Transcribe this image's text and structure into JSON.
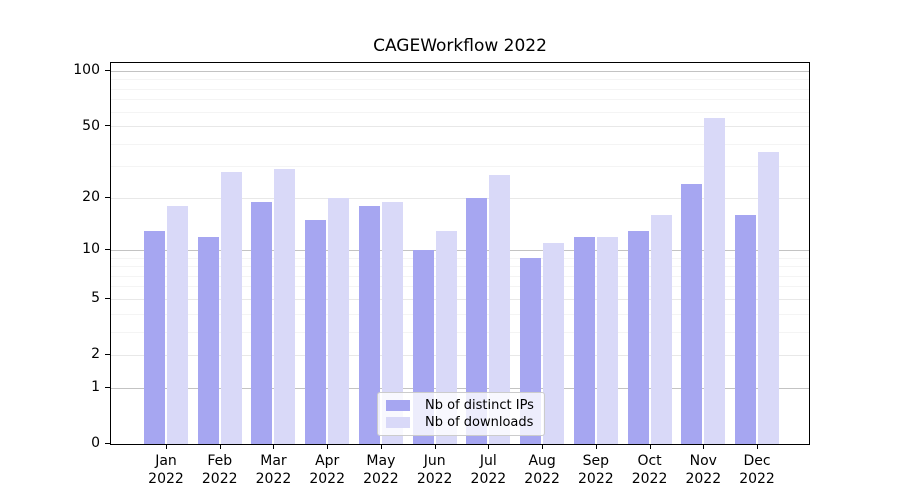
{
  "title": "CAGEWorkflow 2022",
  "chart_data": {
    "type": "bar",
    "title": "CAGEWorkflow 2022",
    "categories": [
      "Jan",
      "Feb",
      "Mar",
      "Apr",
      "May",
      "Jun",
      "Jul",
      "Aug",
      "Sep",
      "Oct",
      "Nov",
      "Dec"
    ],
    "category_year": "2022",
    "series": [
      {
        "name": "Nb of distinct IPs",
        "color": "#a6a6f1",
        "values": [
          13,
          12,
          19,
          15,
          18,
          10,
          20,
          9,
          12,
          13,
          24,
          16
        ]
      },
      {
        "name": "Nb of downloads",
        "color": "#d9d9f8",
        "values": [
          18,
          28,
          29,
          20,
          19,
          13,
          27,
          11,
          12,
          16,
          56,
          36
        ]
      }
    ],
    "xlabel": "",
    "ylabel": "",
    "yscale": "log1p",
    "ylim": [
      0,
      110
    ],
    "yticks": [
      0,
      1,
      2,
      5,
      10,
      20,
      50,
      100
    ],
    "minor_yticks": [
      3,
      4,
      6,
      7,
      8,
      9,
      30,
      40,
      60,
      70,
      80,
      90
    ],
    "pow10_yticks": [
      1,
      10,
      100
    ],
    "grid": true,
    "legend_position": "lower center"
  },
  "legend": {
    "items": [
      {
        "label": "Nb of distinct IPs",
        "color": "#a6a6f1"
      },
      {
        "label": "Nb of downloads",
        "color": "#d9d9f8"
      }
    ]
  },
  "colors": {
    "background": "#ffffff",
    "axis": "#000000",
    "text": "#000000",
    "grid_pow10": "#c3c3c3",
    "grid_major": "#e8e8e8",
    "grid_minor": "#f4f4f4",
    "bar_ips": "#a6a6f1",
    "bar_downloads": "#d9d9f8"
  }
}
